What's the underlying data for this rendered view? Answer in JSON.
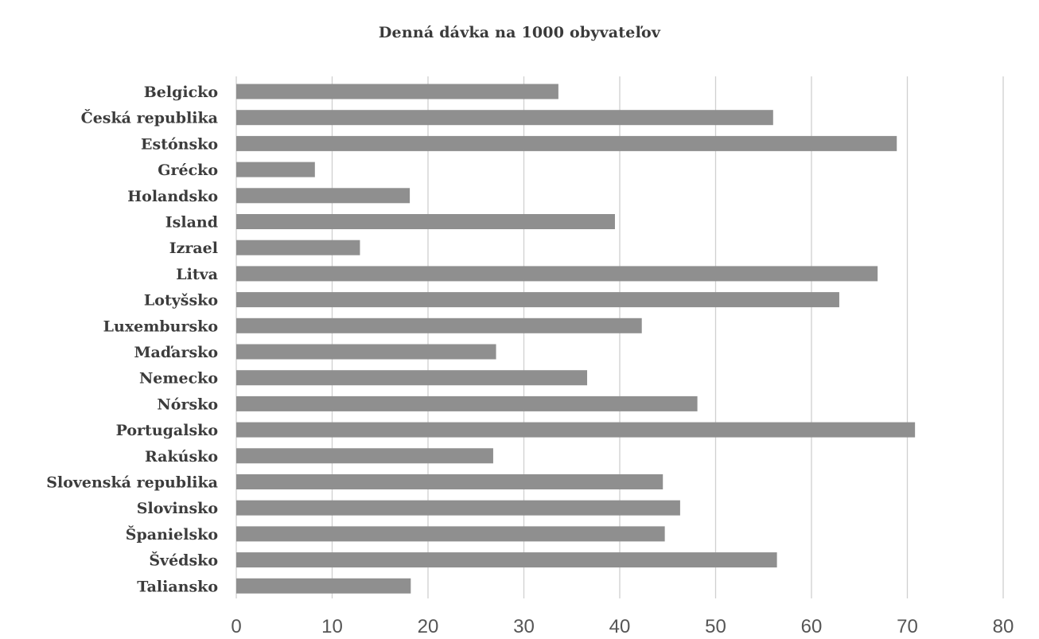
{
  "chart_data": {
    "type": "bar",
    "orientation": "horizontal",
    "title": "Denná dávka na 1000 obyvateľov",
    "xlabel": "",
    "ylabel": "",
    "categories": [
      "Belgicko",
      "Česká republika",
      "Estónsko",
      "Grécko",
      "Holandsko",
      "Island",
      "Izrael",
      "Litva",
      "Lotyšsko",
      "Luxembursko",
      "Maďarsko",
      "Nemecko",
      "Nórsko",
      "Portugalsko",
      "Rakúsko",
      "Slovenská republika",
      "Slovinsko",
      "Španielsko",
      "Švédsko",
      "Taliansko"
    ],
    "values": [
      33.6,
      56.0,
      68.9,
      8.2,
      18.1,
      39.5,
      12.9,
      66.9,
      62.9,
      42.3,
      27.1,
      36.6,
      48.1,
      70.8,
      26.8,
      44.5,
      46.3,
      44.7,
      56.4,
      18.2
    ],
    "xlim": [
      0,
      80
    ],
    "xticks": [
      "0",
      "10",
      "20",
      "30",
      "40",
      "50",
      "60",
      "70",
      "80"
    ],
    "grid": "vertical",
    "bar_color": "#8f8f8f",
    "grid_color": "#d0d0d0"
  }
}
